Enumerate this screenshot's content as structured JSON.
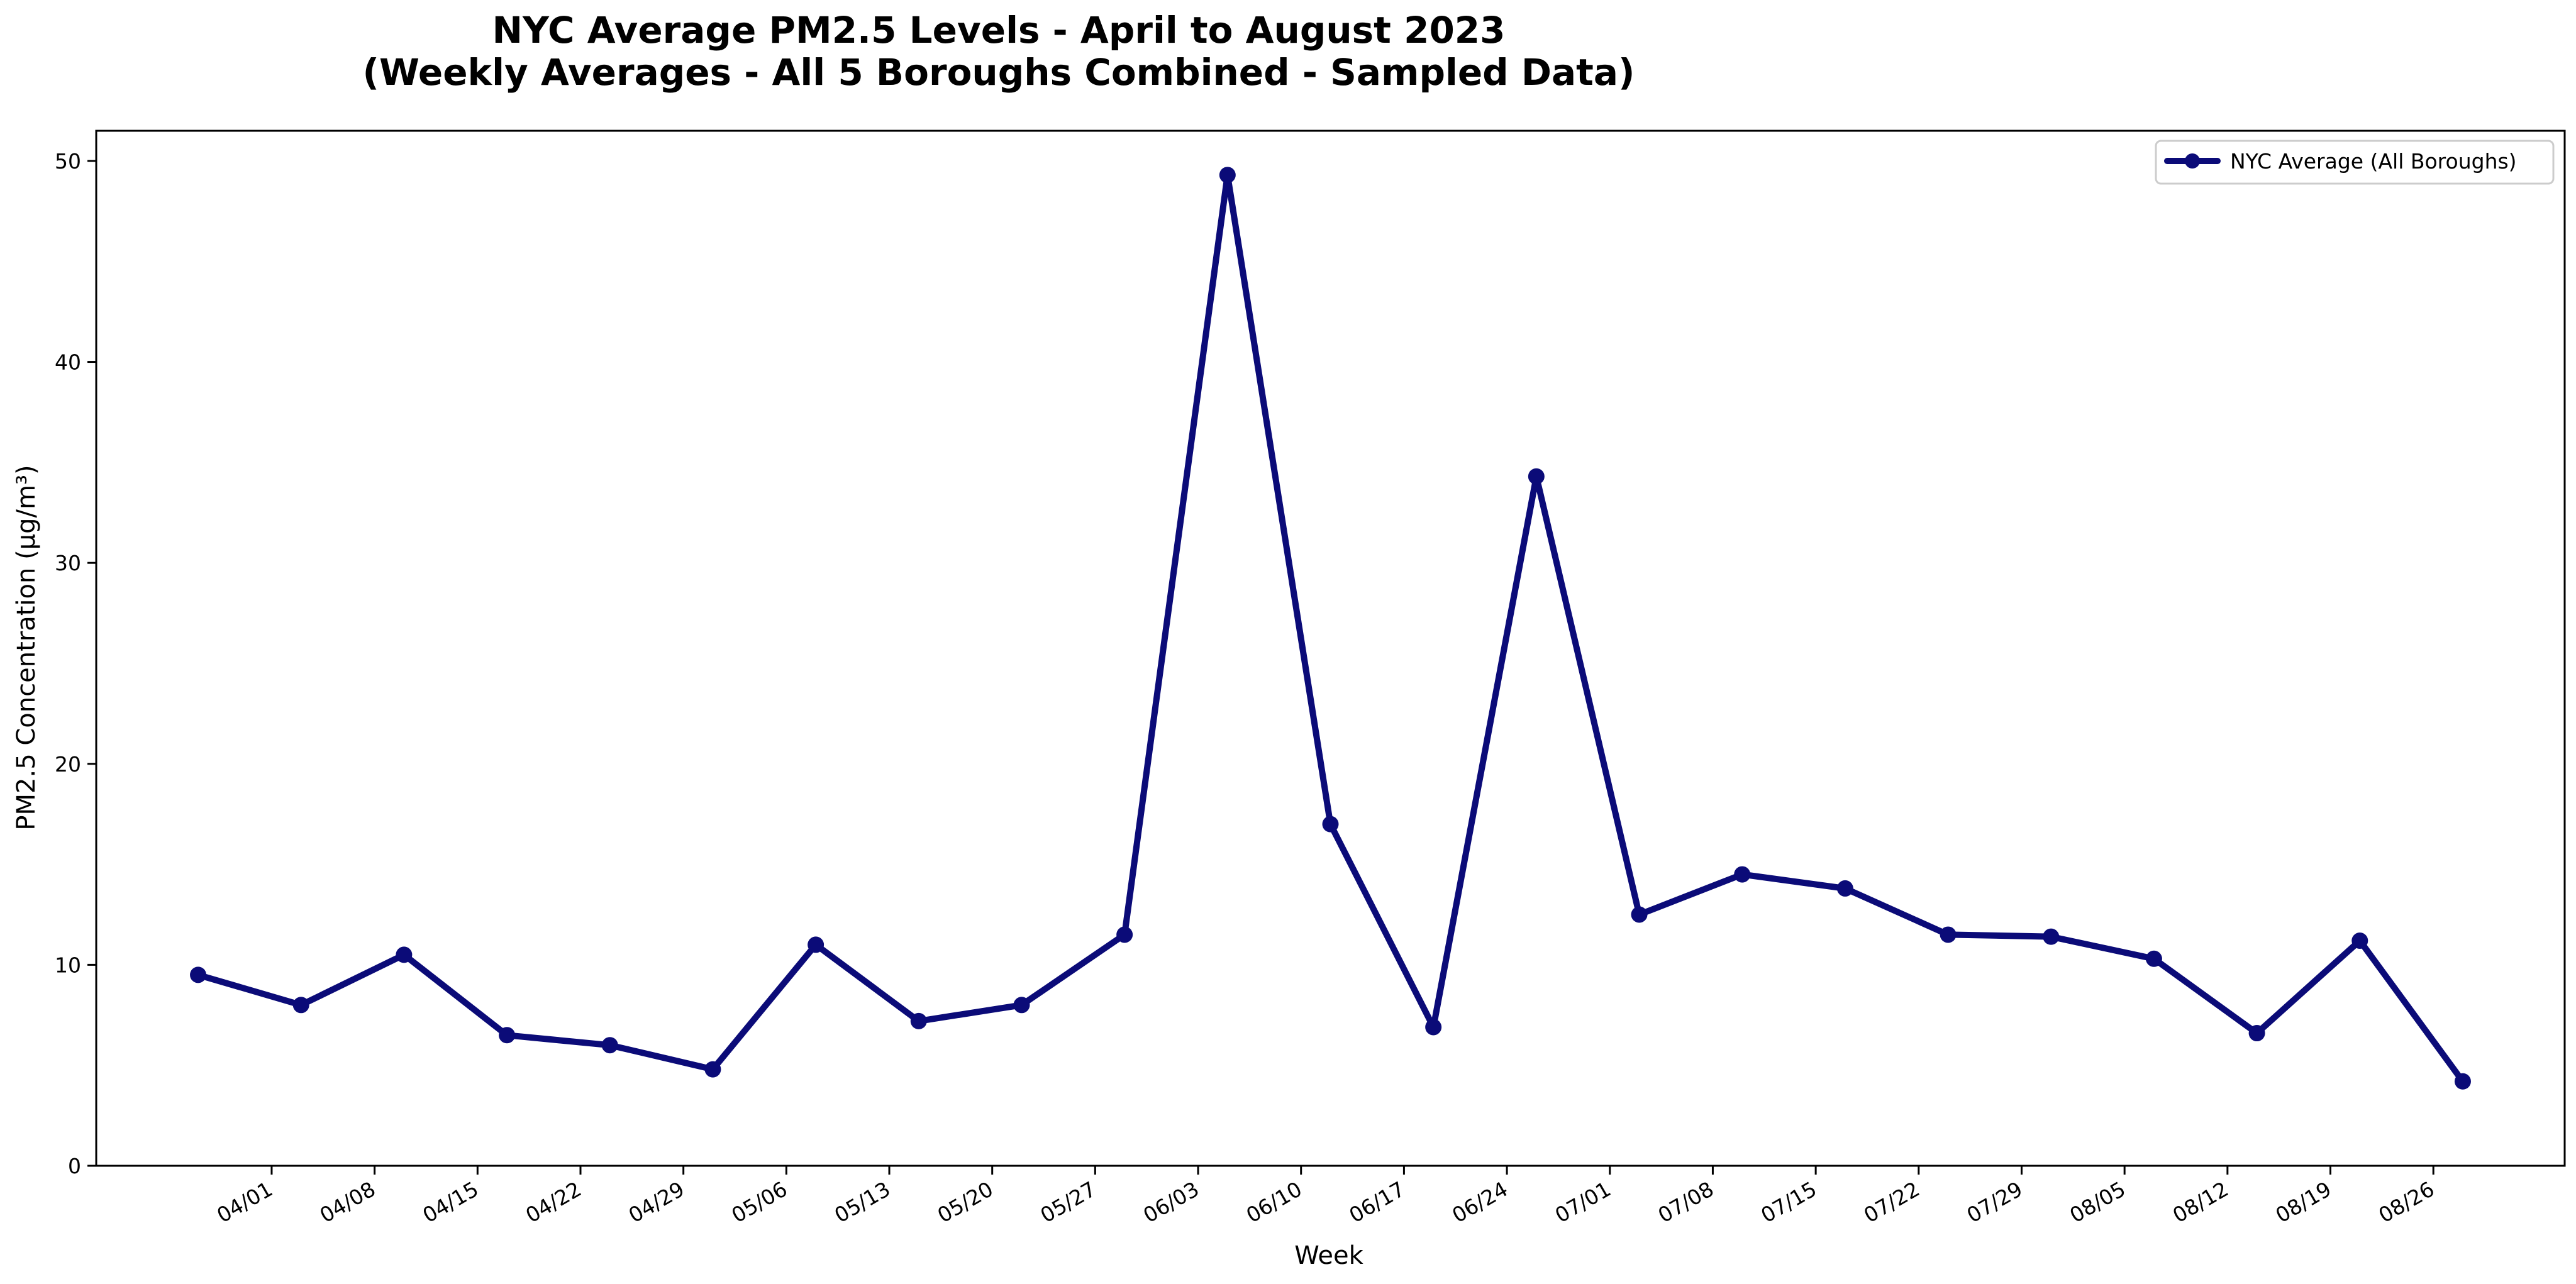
{
  "chart_data": {
    "type": "line",
    "title": "NYC Average PM2.5 Levels - April to August 2023",
    "subtitle": "(Weekly Averages - All 5 Boroughs Combined - Sampled Data)",
    "xlabel": "Week",
    "ylabel": "PM2.5 Concentration (µg/m³)",
    "ylim": [
      0,
      51.5
    ],
    "yticks": [
      0,
      10,
      20,
      30,
      40,
      50
    ],
    "xticks": [
      "04/01",
      "04/08",
      "04/15",
      "04/22",
      "04/29",
      "05/06",
      "05/13",
      "05/20",
      "05/27",
      "06/03",
      "06/10",
      "06/17",
      "06/24",
      "07/01",
      "07/08",
      "07/15",
      "07/22",
      "07/29",
      "08/05",
      "08/12",
      "08/19",
      "08/26"
    ],
    "grid": false,
    "legend_position": "top-right",
    "color": "#0b0b78",
    "series": [
      {
        "name": "NYC Average (All Boroughs)",
        "x": [
          "03/27",
          "04/03",
          "04/10",
          "04/17",
          "04/24",
          "05/01",
          "05/08",
          "05/15",
          "05/22",
          "05/29",
          "06/05",
          "06/12",
          "06/19",
          "06/26",
          "07/03",
          "07/10",
          "07/17",
          "07/24",
          "07/31",
          "08/07",
          "08/14",
          "08/21",
          "08/28"
        ],
        "values": [
          9.5,
          8.0,
          10.5,
          6.5,
          6.0,
          4.8,
          11.0,
          7.2,
          8.0,
          11.5,
          49.3,
          17.0,
          6.9,
          34.3,
          12.5,
          14.5,
          13.8,
          11.5,
          11.4,
          10.3,
          6.6,
          11.2,
          4.2
        ]
      }
    ]
  }
}
